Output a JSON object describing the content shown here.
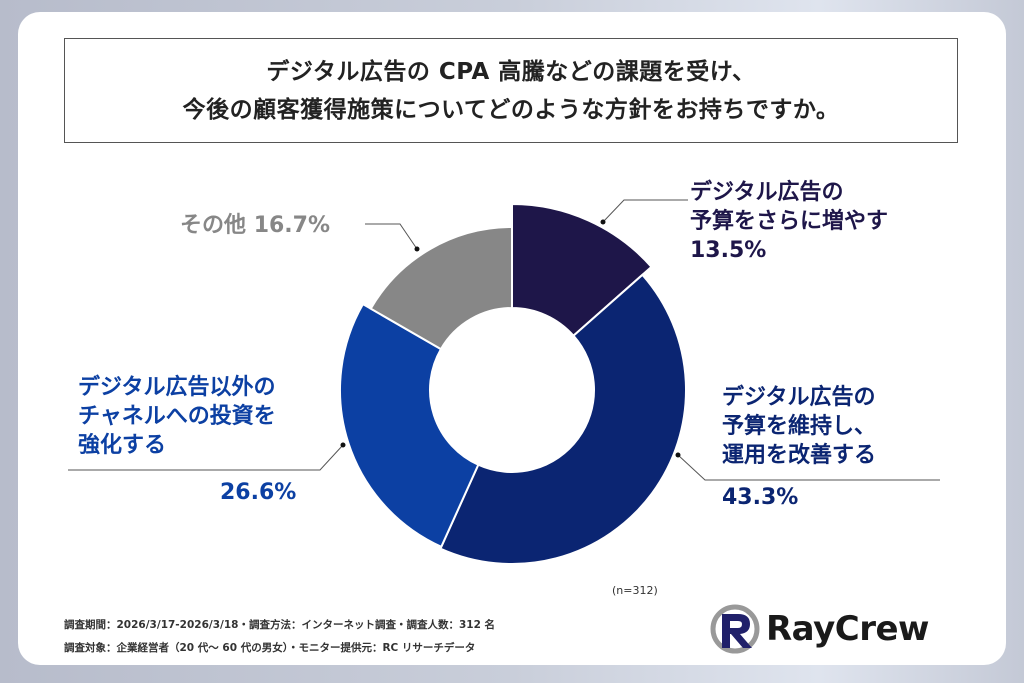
{
  "title": {
    "line1": "デジタル広告の CPA 高騰などの課題を受け、",
    "line2": "今後の顧客獲得施策についてどのような方針をお持ちですか。"
  },
  "chart_data": {
    "type": "pie",
    "donut": true,
    "start": "top-clockwise",
    "slices": [
      {
        "label_lines": [
          "デジタル広告の",
          "予算をさらに増やす"
        ],
        "value": 13.5,
        "value_label": "13.5%",
        "color": "#1e1649"
      },
      {
        "label_lines": [
          "デジタル広告の",
          "予算を維持し、",
          "運用を改善する"
        ],
        "value": 43.3,
        "value_label": "43.3%",
        "color": "#0b2572"
      },
      {
        "label_lines": [
          "デジタル広告以外の",
          "チャネルへの投資を",
          "強化する"
        ],
        "value": 26.6,
        "value_label": "26.6%",
        "color": "#0c40a3"
      },
      {
        "label_lines": [
          "その他"
        ],
        "value": 16.7,
        "value_label": "16.7%",
        "color": "#878787"
      }
    ],
    "sample_note": "(n=312)"
  },
  "footer": {
    "line1": "調査期間：2026/3/17-2026/3/18・調査方法：インターネット調査・調査人数：312 名",
    "line2": "調査対象：企業経営者（20 代〜 60 代の男女）・モニター提供元：RC リサーチデータ"
  },
  "logo": {
    "text": "RayCrew"
  }
}
